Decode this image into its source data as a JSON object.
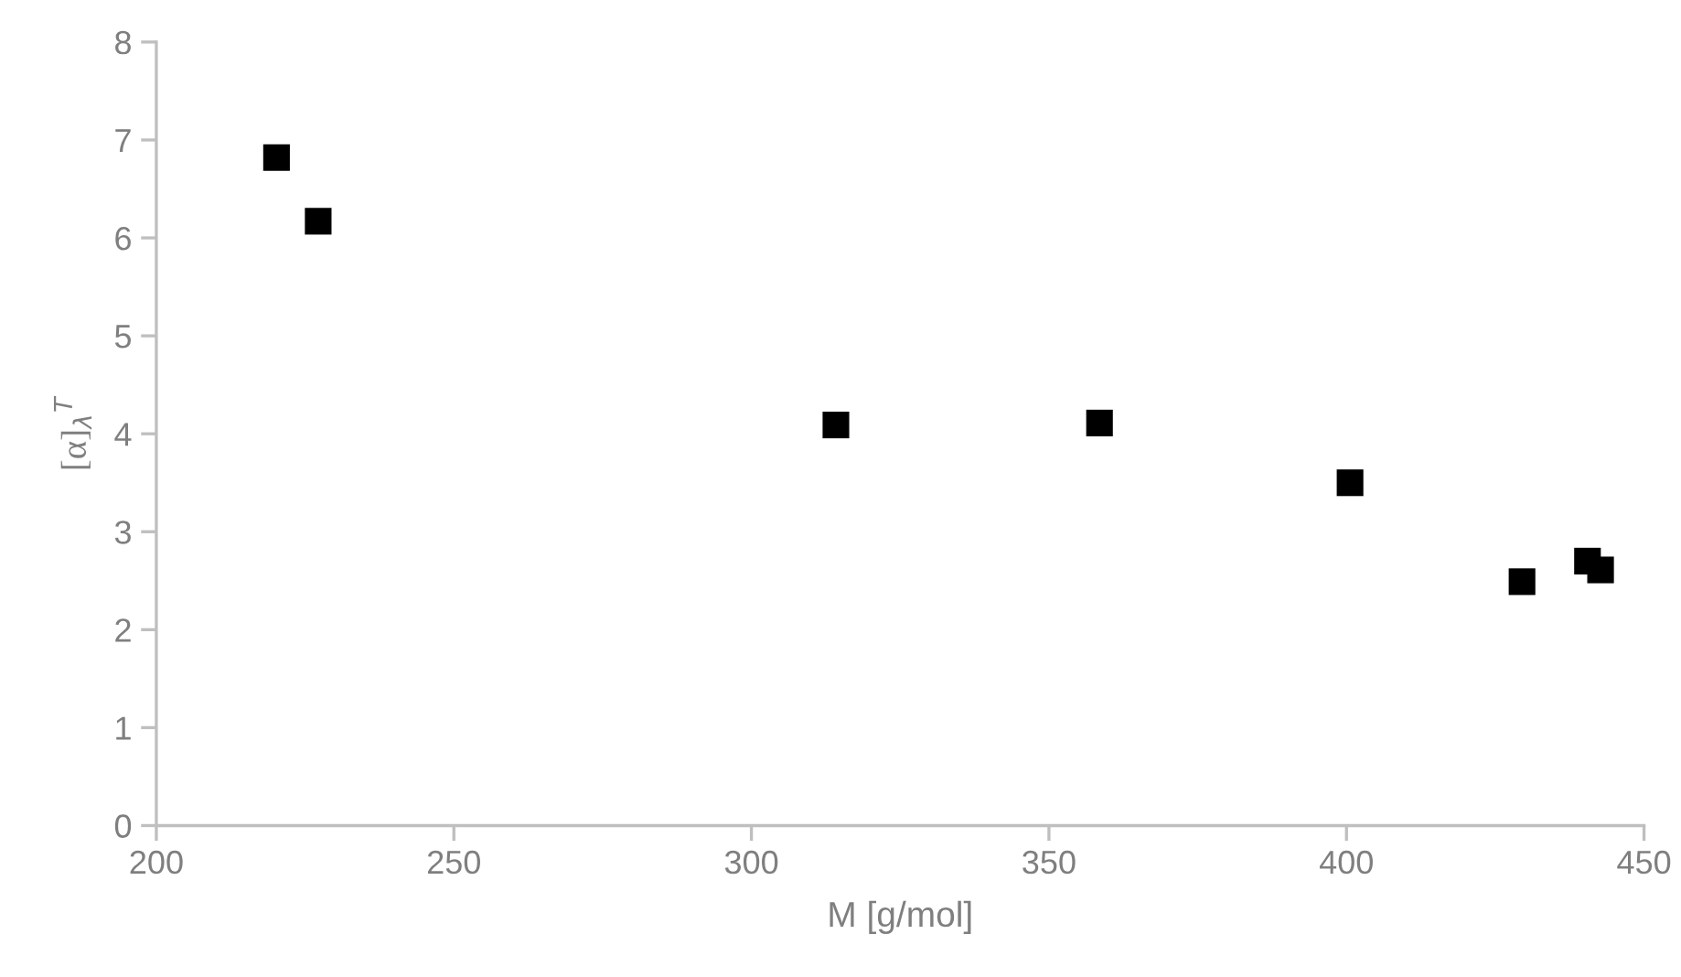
{
  "chart_data": {
    "type": "scatter",
    "xlabel": "M [g/mol]",
    "ylabel": "[α]$_{λ}$$^{T}$",
    "x": [
      220.2,
      227.2,
      314.2,
      358.5,
      400.6,
      429.5,
      440.5,
      442.7
    ],
    "values": [
      6.82,
      6.17,
      4.09,
      4.11,
      3.5,
      2.49,
      2.7,
      2.61
    ],
    "color": "#000000",
    "marker": "square",
    "xlim": [
      200,
      450
    ],
    "xticks": [
      200,
      250,
      300,
      350,
      400,
      450
    ],
    "ylim": [
      0,
      8
    ],
    "yticks": [
      0,
      1,
      2,
      3,
      4,
      5,
      6,
      7,
      8
    ],
    "grid": false,
    "legend": false
  }
}
